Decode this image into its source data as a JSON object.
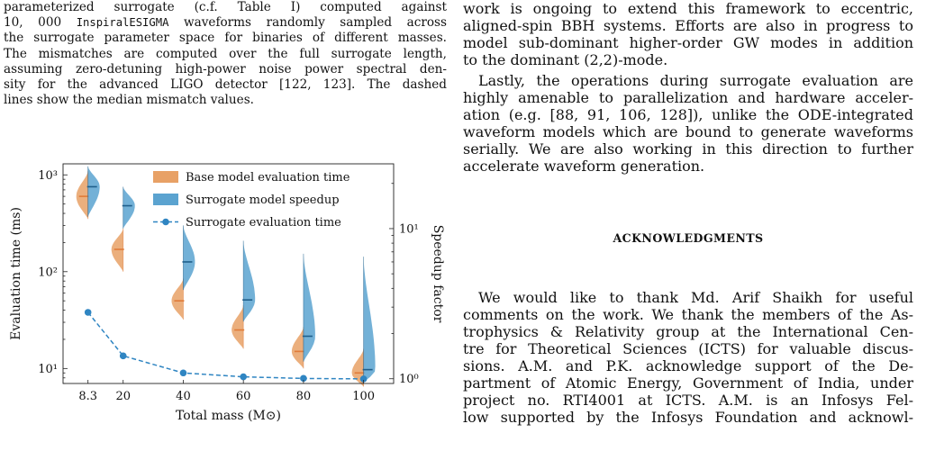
{
  "caption_lines": [
    "parameterized surrogate (c.f.   Table I) computed against",
    "10, 000 ",
    "the surrogate parameter space for binaries of different masses.",
    "The mismatches are computed over the full surrogate length,",
    "assuming zero-detuning high-power noise power spectral den-",
    "sity for the advanced LIGO detector [122, 123].  The dashed",
    "lines show the median mismatch values."
  ],
  "caption_mono": "InspiralESIGMA",
  "caption_line2_rest": " waveforms randomly sampled across",
  "right_text": {
    "p1": [
      "work is ongoing to extend this framework to eccentric,",
      "aligned-spin BBH systems. Efforts are also in progress to",
      "model sub-dominant higher-order GW modes in addition",
      "to the dominant (2,2)-mode."
    ],
    "p2": [
      "Lastly, the operations during surrogate evaluation are",
      "highly amenable to parallelization and hardware acceler-",
      "ation (e.g. [88, 91, 106, 128]), unlike the ODE-integrated",
      "waveform models which are bound to generate waveforms",
      "serially. We are also working in this direction to further",
      "accelerate waveform generation."
    ],
    "heading": "ACKNOWLEDGMENTS",
    "p3": [
      "We would like to thank Md.  Arif Shaikh for useful",
      "comments on the work. We thank the members of the As-",
      "trophysics & Relativity group at the International Cen-",
      "tre for Theoretical Sciences (ICTS) for valuable discus-",
      "sions.  A.M. and P.K. acknowledge support of the De-",
      "partment of Atomic Energy, Government of India, under",
      "project no.  RTI4001 at ICTS. A.M. is an Infosys Fel-",
      "low supported by the Infosys Foundation and acknowl-"
    ]
  },
  "chart_data": {
    "type": "violin",
    "x": [
      8.3,
      20,
      40,
      60,
      80,
      100
    ],
    "x_tick_labels": [
      "8.3",
      "20",
      "40",
      "60",
      "80",
      "100"
    ],
    "xlabel": "Total mass (M⊙)",
    "ylabel_left": "Evaluation time (ms)",
    "ylabel_right": "Speedup factor",
    "yscale_left": "log",
    "yscale_right": "log",
    "ylim_left": [
      7,
      1300
    ],
    "ylim_right": [
      0.93,
      27
    ],
    "left_tick_labels": [
      "10¹",
      "10²",
      "10³"
    ],
    "right_tick_labels": [
      "10⁰",
      "10¹"
    ],
    "legend_position": "top-right",
    "series": [
      {
        "name": "Base model evaluation time",
        "kind": "violin-left-half",
        "axis": "left",
        "color": "#e8a166",
        "median_color": "#e07b39",
        "median": [
          600,
          170,
          50,
          25,
          15,
          9
        ],
        "min": [
          350,
          100,
          32,
          16,
          10,
          6.5
        ],
        "max": [
          1100,
          280,
          85,
          45,
          27,
          16
        ]
      },
      {
        "name": "Surrogate model speedup",
        "kind": "violin-right-half",
        "axis": "right",
        "color": "#5ba3d0",
        "median_color": "#1f5f8b",
        "median": [
          19,
          14.2,
          6.0,
          3.35,
          1.92,
          1.15
        ],
        "min": [
          12,
          10,
          3.9,
          2.4,
          1.3,
          0.95
        ],
        "max": [
          26,
          19,
          10.5,
          8.3,
          6.8,
          6.5
        ]
      },
      {
        "name": "Surrogate evaluation time",
        "kind": "dashed-line-markers",
        "axis": "left",
        "color": "#2f85c2",
        "values": [
          38,
          13.5,
          9.0,
          8.2,
          7.9,
          7.8
        ]
      }
    ]
  }
}
